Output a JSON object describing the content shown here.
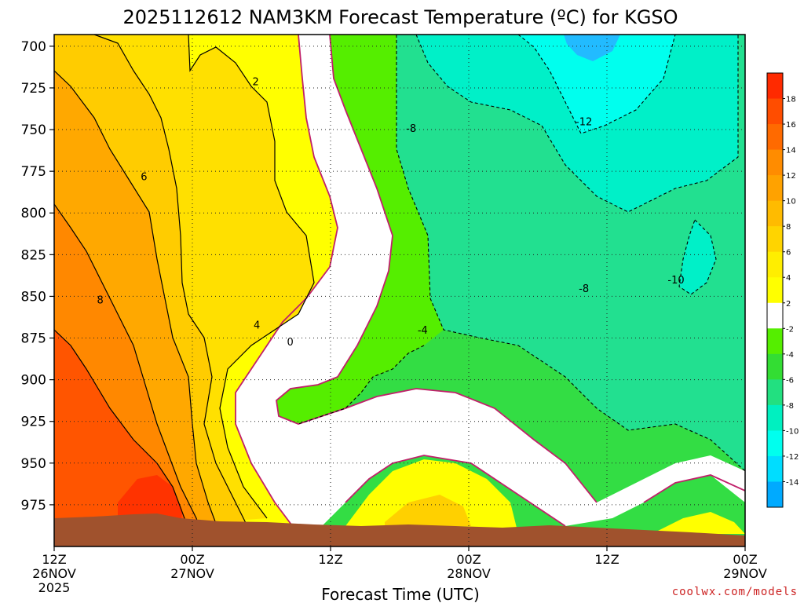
{
  "chart_data": {
    "type": "heatmap",
    "title": "2025112612 NAM3KM Forecast Temperature (ºC) for KGSO",
    "xlabel": "Forecast Time (UTC)",
    "ylabel": "",
    "credit": "coolwx.com/models",
    "y_ticks": [
      "700",
      "725",
      "750",
      "775",
      "800",
      "825",
      "850",
      "875",
      "900",
      "925",
      "950",
      "975"
    ],
    "y_values": [
      700,
      725,
      750,
      775,
      800,
      825,
      850,
      875,
      900,
      925,
      950,
      975
    ],
    "ylim": [
      693,
      1000
    ],
    "x_ticks": [
      {
        "hour": 0,
        "line1": "12Z",
        "line2": "26NOV",
        "line3": "2025"
      },
      {
        "hour": 12,
        "line1": "00Z",
        "line2": "27NOV",
        "line3": ""
      },
      {
        "hour": 24,
        "line1": "12Z",
        "line2": "",
        "line3": ""
      },
      {
        "hour": 36,
        "line1": "00Z",
        "line2": "28NOV",
        "line3": ""
      },
      {
        "hour": 48,
        "line1": "12Z",
        "line2": "",
        "line3": ""
      },
      {
        "hour": 60,
        "line1": "00Z",
        "line2": "29NOV",
        "line3": ""
      }
    ],
    "xlim": [
      0,
      60
    ],
    "colorbar": {
      "labels": [
        "18",
        "16",
        "14",
        "12",
        "10",
        "8",
        "6",
        "4",
        "2",
        "-2",
        "-4",
        "-6",
        "-8",
        "-10",
        "-12",
        "-14"
      ],
      "colors": [
        "#ff2a00",
        "#ff4d00",
        "#ff6a00",
        "#ff8c00",
        "#ffa200",
        "#ffbb00",
        "#ffd400",
        "#ffee00",
        "#ffff00",
        "#ffffff",
        "#55ee00",
        "#33dd33",
        "#22e080",
        "#00f0c0",
        "#00ffee",
        "#00ddff",
        "#00aaff"
      ]
    },
    "contour_labels": [
      {
        "text": "2",
        "hour": 17.5,
        "p": 721
      },
      {
        "text": "6",
        "hour": 7.8,
        "p": 778
      },
      {
        "text": "8",
        "hour": 4.0,
        "p": 852
      },
      {
        "text": "4",
        "hour": 17.6,
        "p": 867
      },
      {
        "text": "0",
        "hour": 20.5,
        "p": 877
      },
      {
        "text": "-8",
        "hour": 31.0,
        "p": 749
      },
      {
        "text": "-4",
        "hour": 32.0,
        "p": 870
      },
      {
        "text": "-12",
        "hour": 46.0,
        "p": 745
      },
      {
        "text": "-8",
        "hour": 46.0,
        "p": 845
      },
      {
        "text": "-10",
        "hour": 54.0,
        "p": 840
      }
    ],
    "zones": [
      {
        "name": "warm-18",
        "color": "#ff3300"
      },
      {
        "name": "warm-12",
        "color": "#ff8800"
      },
      {
        "name": "warm-8",
        "color": "#ffa800"
      },
      {
        "name": "warm-4",
        "color": "#ffcc00"
      },
      {
        "name": "warm-2",
        "color": "#ffe000"
      },
      {
        "name": "warm-0",
        "color": "#ffff00"
      },
      {
        "name": "neutral",
        "color": "#ffffff"
      },
      {
        "name": "cold-2",
        "color": "#55ee00"
      },
      {
        "name": "cold-6",
        "color": "#33dd44"
      },
      {
        "name": "cold-8",
        "color": "#22e090"
      },
      {
        "name": "cold-10",
        "color": "#00f0c8"
      },
      {
        "name": "cold-12",
        "color": "#00ffee"
      },
      {
        "name": "cold-14",
        "color": "#22bbff"
      },
      {
        "name": "terrain",
        "color": "#a0522d"
      },
      {
        "name": "freezing-line",
        "color": "#c0206a"
      }
    ]
  }
}
